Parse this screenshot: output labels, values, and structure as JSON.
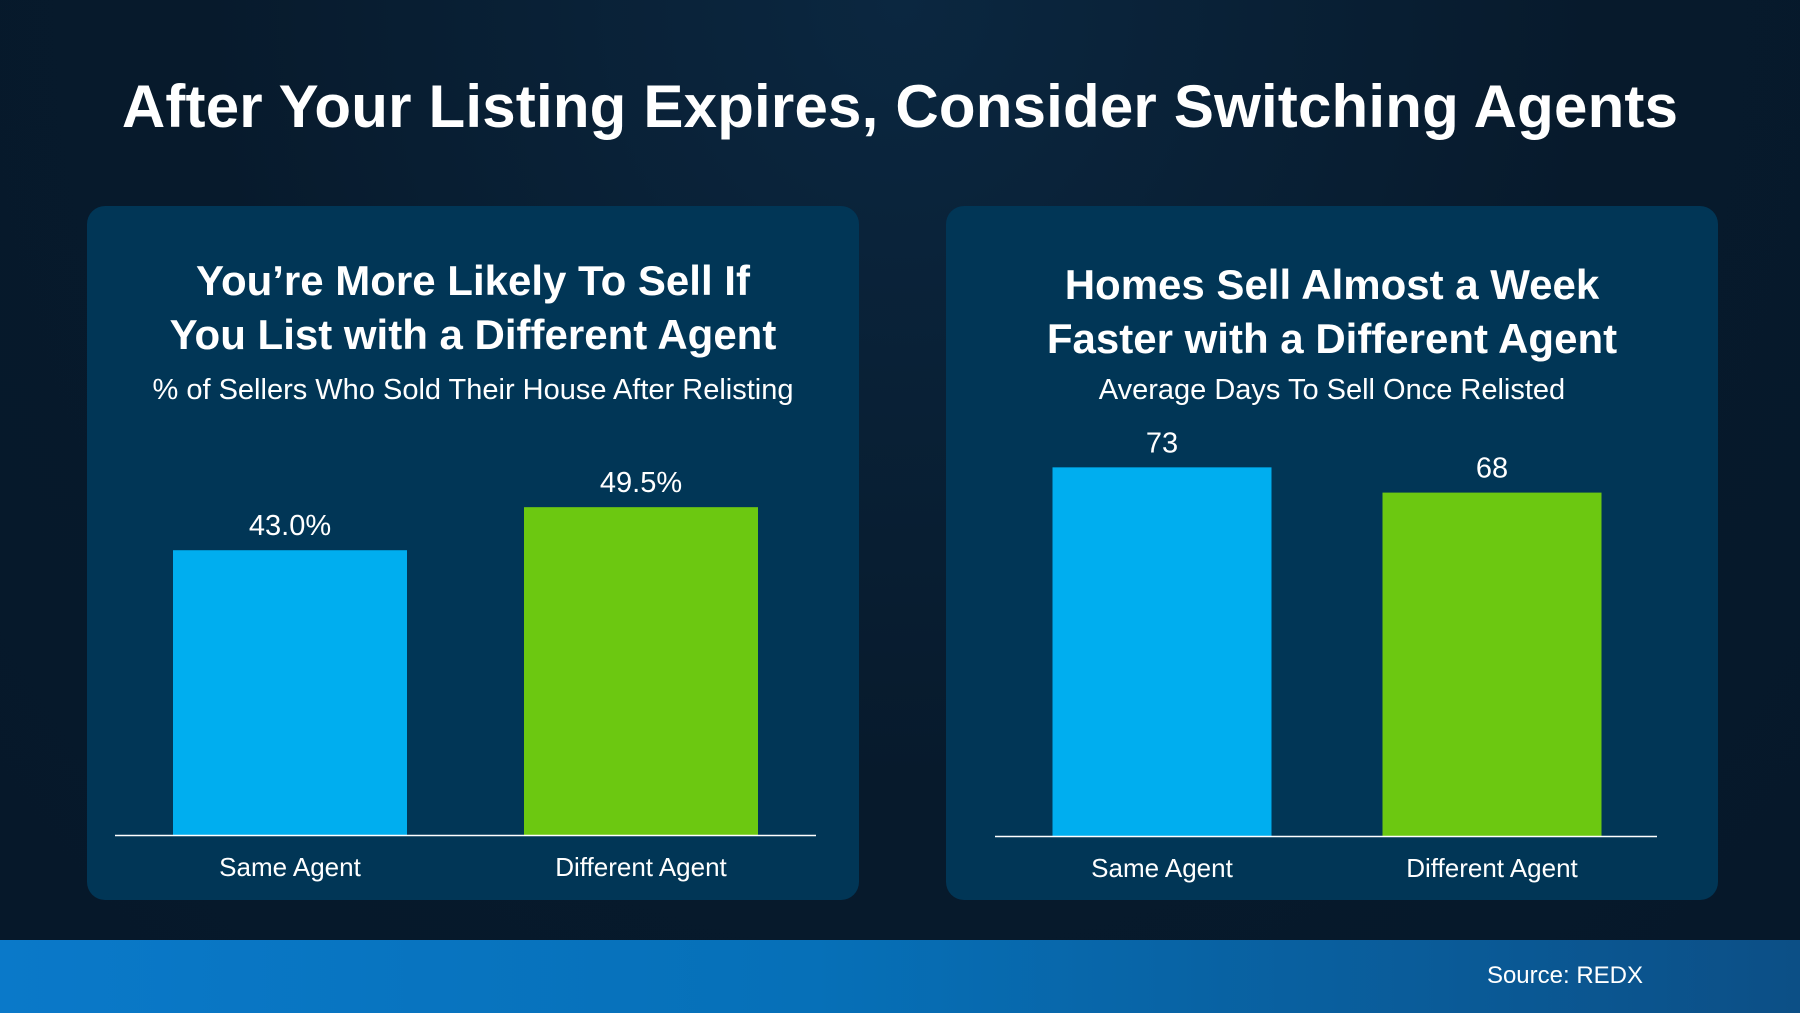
{
  "title": "After Your Listing Expires, Consider Switching Agents",
  "colors": {
    "same_agent": "#00aeef",
    "different_agent": "#6cc811",
    "panel": "#013656",
    "background": "#071a2c"
  },
  "chart_data": [
    {
      "type": "bar",
      "title_lines": [
        "You’re More Likely To Sell If",
        "You List with a Different Agent"
      ],
      "subtitle": "% of Sellers Who Sold Their House After Relisting",
      "categories": [
        "Same Agent",
        "Different Agent"
      ],
      "values": [
        43.0,
        49.5
      ],
      "value_labels": [
        "43.0%",
        "49.5%"
      ],
      "ylim": [
        0,
        61
      ],
      "grid": false,
      "legend": "none"
    },
    {
      "type": "bar",
      "title_lines": [
        "Homes Sell Almost a Week",
        "Faster with a Different Agent"
      ],
      "subtitle": "Average Days To Sell Once Relisted",
      "categories": [
        "Same Agent",
        "Different Agent"
      ],
      "values": [
        73,
        68
      ],
      "value_labels": [
        "73",
        "68"
      ],
      "ylim": [
        0,
        80
      ],
      "grid": false,
      "legend": "none"
    }
  ],
  "footer": {
    "source": "Source: REDX"
  }
}
